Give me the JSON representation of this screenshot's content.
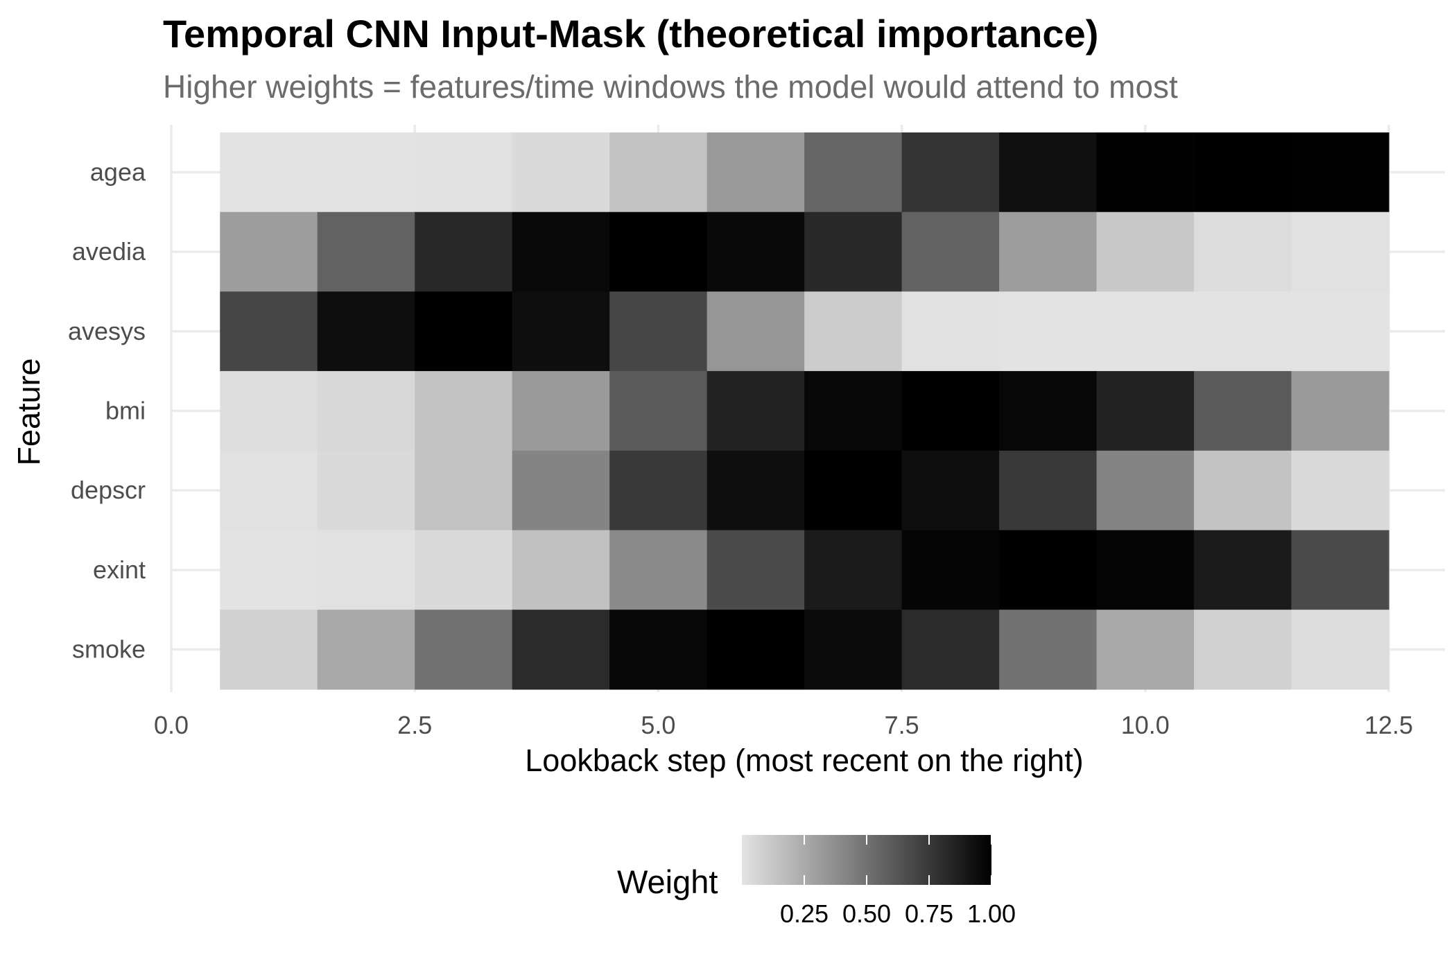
{
  "chart_data": {
    "type": "heatmap",
    "title": "Temporal CNN Input-Mask (theoretical importance)",
    "subtitle": "Higher weights = features/time windows the model would attend to most",
    "xlabel": "Lookback step (most recent on the right)",
    "ylabel": "Feature",
    "xlim": [
      0,
      12.5
    ],
    "x_ticks": [
      0.0,
      2.5,
      5.0,
      7.5,
      10.0,
      12.5
    ],
    "x_tick_labels": [
      "0.0",
      "2.5",
      "5.0",
      "7.5",
      "10.0",
      "12.5"
    ],
    "x": [
      1,
      2,
      3,
      4,
      5,
      6,
      7,
      8,
      9,
      10,
      11,
      12
    ],
    "y": [
      "agea",
      "avedia",
      "avesys",
      "bmi",
      "depscr",
      "exint",
      "smoke"
    ],
    "values": [
      [
        0.0,
        0.0,
        0.01,
        0.04,
        0.14,
        0.32,
        0.55,
        0.77,
        0.93,
        0.99,
        1.0,
        0.99
      ],
      [
        0.31,
        0.57,
        0.82,
        0.96,
        1.0,
        0.96,
        0.82,
        0.57,
        0.31,
        0.12,
        0.03,
        0.01
      ],
      [
        0.69,
        0.94,
        1.0,
        0.94,
        0.69,
        0.34,
        0.1,
        0.01,
        0.0,
        0.0,
        0.0,
        0.0
      ],
      [
        0.02,
        0.05,
        0.14,
        0.32,
        0.6,
        0.85,
        0.97,
        1.0,
        0.97,
        0.85,
        0.6,
        0.32
      ],
      [
        0.01,
        0.04,
        0.14,
        0.42,
        0.75,
        0.94,
        1.0,
        0.94,
        0.75,
        0.42,
        0.14,
        0.04
      ],
      [
        0.0,
        0.01,
        0.04,
        0.15,
        0.39,
        0.67,
        0.88,
        0.98,
        1.0,
        0.98,
        0.88,
        0.67
      ],
      [
        0.08,
        0.26,
        0.5,
        0.81,
        0.97,
        1.0,
        0.95,
        0.81,
        0.5,
        0.26,
        0.08,
        0.03
      ]
    ],
    "legend": {
      "title": "Weight",
      "ticks": [
        0.25,
        0.5,
        0.75,
        1.0
      ],
      "tick_labels": [
        "0.25",
        "0.50",
        "0.75",
        "1.00"
      ],
      "placement": "bottom",
      "colors": {
        "low": "#e3e3e3",
        "high": "#000000"
      }
    },
    "grid": true
  }
}
